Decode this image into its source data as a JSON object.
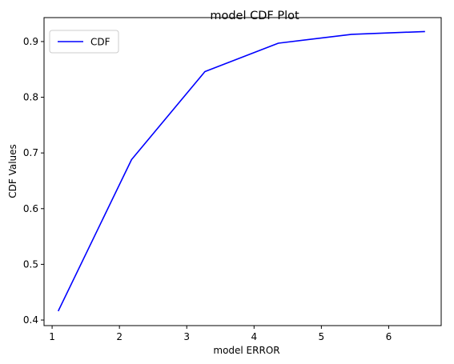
{
  "chart_data": {
    "type": "line",
    "title": "model CDF Plot",
    "xlabel": "model ERROR",
    "ylabel": "CDF Values",
    "xlim": [
      0.88,
      6.78
    ],
    "ylim": [
      0.39,
      0.943
    ],
    "xticks": [
      1,
      2,
      3,
      4,
      5,
      6
    ],
    "yticks": [
      0.4,
      0.5,
      0.6,
      0.7,
      0.8,
      0.9
    ],
    "xtick_labels": [
      "1",
      "2",
      "3",
      "4",
      "5",
      "6"
    ],
    "ytick_labels": [
      "0.4",
      "0.5",
      "0.6",
      "0.7",
      "0.8",
      "0.9"
    ],
    "grid": false,
    "legend": {
      "position": "upper-left"
    },
    "series": [
      {
        "name": "CDF",
        "color": "#0000ff",
        "x": [
          1.09,
          2.18,
          3.27,
          4.36,
          5.45,
          6.54
        ],
        "y": [
          0.416,
          0.688,
          0.846,
          0.897,
          0.913,
          0.918
        ]
      }
    ]
  }
}
